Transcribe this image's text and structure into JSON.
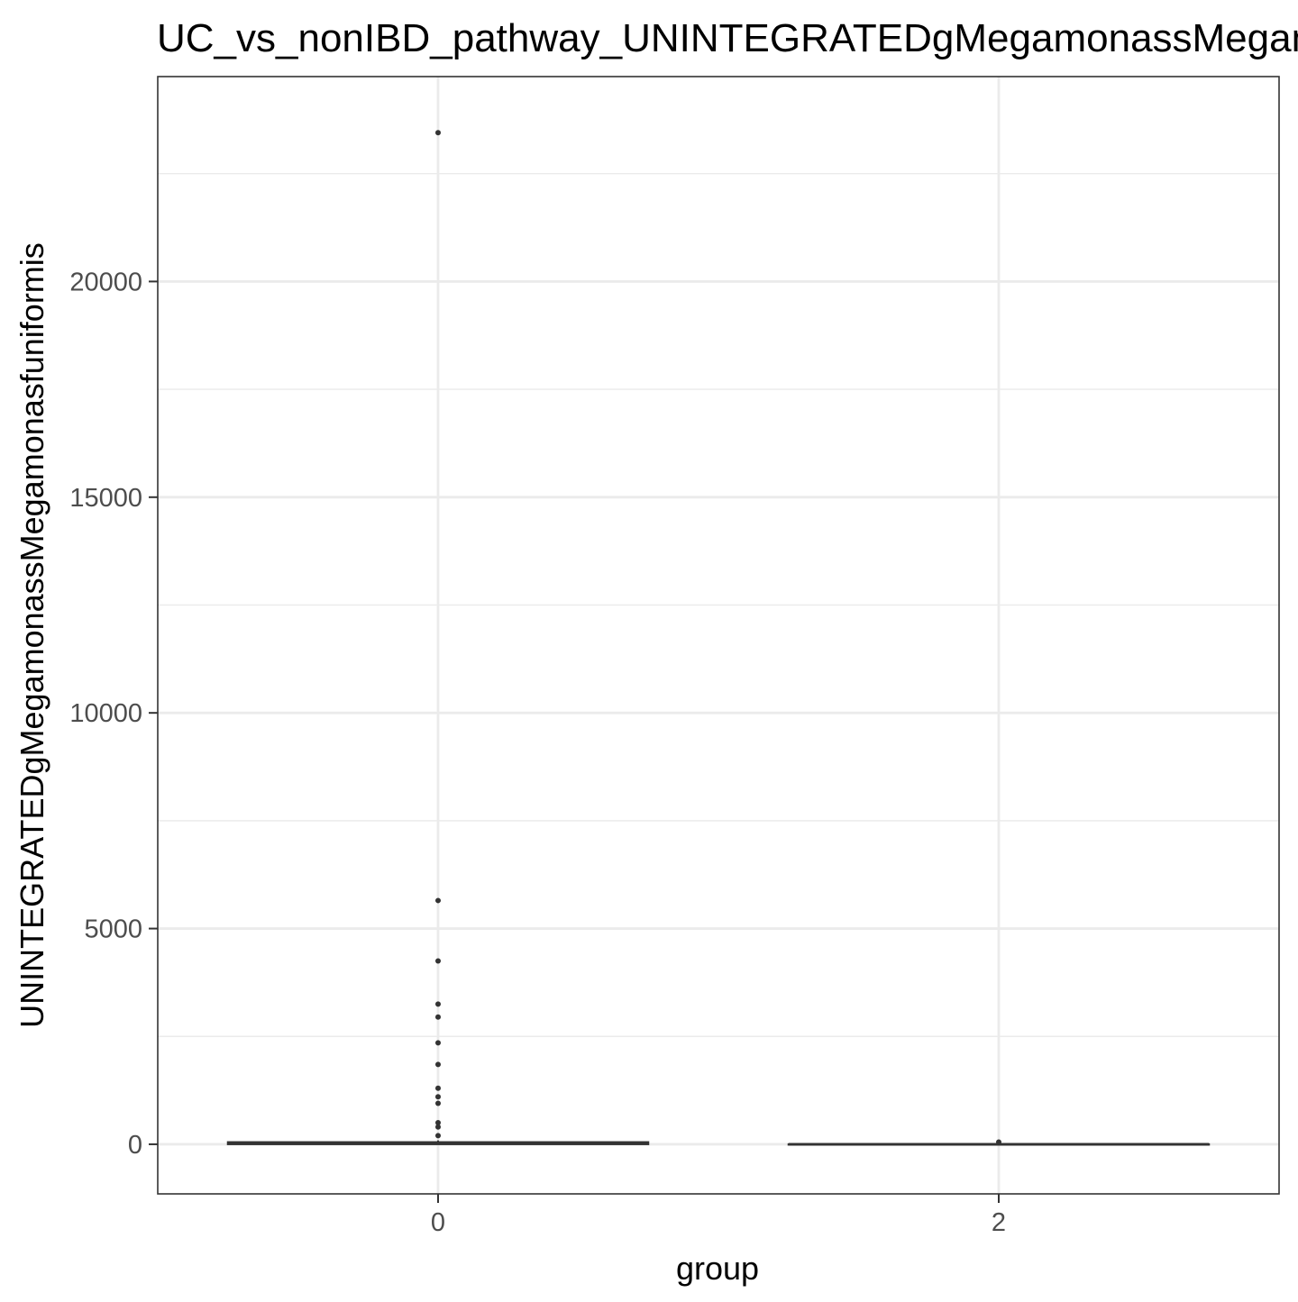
{
  "chart_data": {
    "type": "boxplot",
    "title": "UC_vs_nonIBD_pathway_UNINTEGRATEDgMegamonassMegamonasfuniformis",
    "xlabel": "group",
    "ylabel": "UNINTEGRATEDgMegamonassMegamonasfuniformis",
    "ylim": [
      -1150,
      24750
    ],
    "y_ticks_major": [
      0,
      5000,
      10000,
      15000,
      20000
    ],
    "y_ticks_minor": [
      2500,
      7500,
      12500,
      17500,
      22500
    ],
    "y_tick_labels": [
      "0",
      "5000",
      "10000",
      "15000",
      "20000"
    ],
    "categories": [
      "0",
      "2"
    ],
    "grid": true,
    "theme": "bw",
    "colors": {
      "box": "#333333",
      "grid": "#ebebeb",
      "panel_border": "#333333"
    },
    "groups": [
      {
        "name": "0",
        "box": {
          "q1": 0,
          "median": 20,
          "q3": 50,
          "whisker_low": 0,
          "whisker_high": 90
        },
        "outliers": [
          23450,
          5650,
          4250,
          3250,
          2950,
          2350,
          1850,
          1300,
          1100,
          950,
          500,
          400,
          200
        ]
      },
      {
        "name": "2",
        "box": {
          "q1": 0,
          "median": 0,
          "q3": 0,
          "whisker_low": 0,
          "whisker_high": 0
        },
        "outliers": [
          50
        ]
      }
    ]
  }
}
